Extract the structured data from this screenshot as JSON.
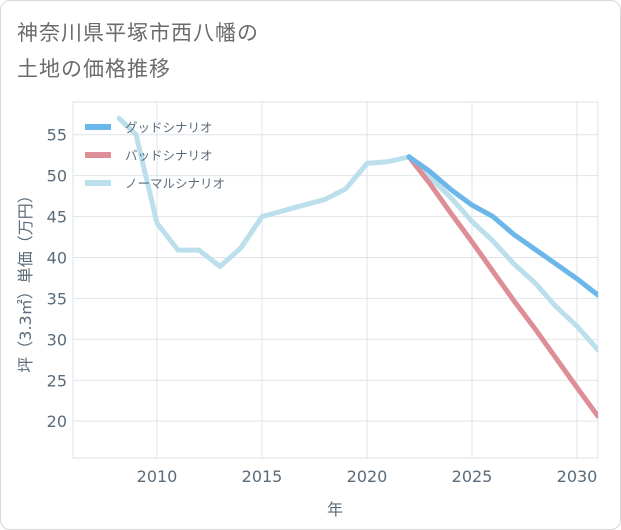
{
  "title_lines": [
    "神奈川県平塚市西八幡の",
    "土地の価格推移"
  ],
  "chart_data": {
    "type": "line",
    "xlabel": "年",
    "ylabel": "坪（3.3㎡）単価（万円）",
    "xlim": [
      2006.0,
      2031.0
    ],
    "ylim": [
      15.5,
      59.0
    ],
    "xticks": [
      2010,
      2015,
      2020,
      2025,
      2030
    ],
    "yticks": [
      20,
      25,
      30,
      35,
      40,
      45,
      50,
      55
    ],
    "grid": true,
    "legend_position": "top-left",
    "series": [
      {
        "name": "グッドシナリオ",
        "color": "#6cb7ea",
        "x": [
          2022,
          2023,
          2024,
          2025,
          2026,
          2027,
          2028,
          2029,
          2030,
          2031
        ],
        "y": [
          52.3,
          50.5,
          48.3,
          46.4,
          45.0,
          42.8,
          41.0,
          39.2,
          37.4,
          35.4
        ]
      },
      {
        "name": "バッドシナリオ",
        "color": "#dd8e96",
        "x": [
          2022,
          2023,
          2024,
          2025,
          2026,
          2027,
          2028,
          2029,
          2030,
          2031
        ],
        "y": [
          52.3,
          49.0,
          45.4,
          41.9,
          38.3,
          34.7,
          31.3,
          27.7,
          24.1,
          20.6
        ]
      },
      {
        "name": "ノーマルシナリオ",
        "color": "#bcdfec",
        "x": [
          2008.2,
          2009,
          2010,
          2011,
          2012,
          2013,
          2014,
          2015,
          2016,
          2017,
          2018,
          2019,
          2020,
          2021,
          2022,
          2023,
          2024,
          2025,
          2026,
          2027,
          2028,
          2029,
          2030,
          2031
        ],
        "y": [
          57.0,
          55.0,
          44.2,
          40.9,
          40.9,
          38.9,
          41.2,
          45.0,
          45.7,
          46.4,
          47.1,
          48.4,
          51.5,
          51.7,
          52.3,
          49.8,
          47.3,
          44.4,
          42.0,
          39.2,
          36.9,
          34.0,
          31.6,
          28.7
        ]
      }
    ]
  }
}
